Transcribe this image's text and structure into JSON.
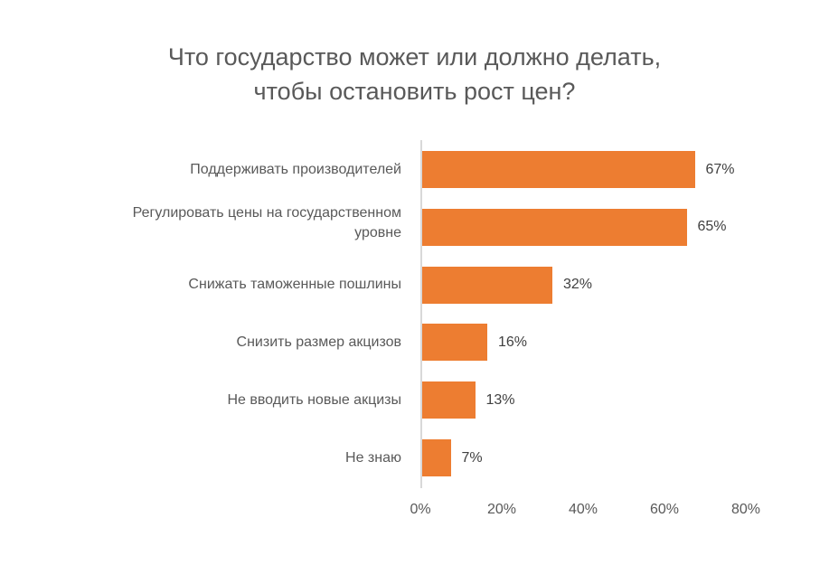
{
  "chart_data": {
    "type": "bar",
    "orientation": "horizontal",
    "title": "Что государство может или должно делать, чтобы остановить рост цен?",
    "title_lines": [
      "Что государство может или должно делать,",
      "чтобы остановить рост цен?"
    ],
    "categories": [
      "Поддерживать производителей",
      "Регулировать цены на государственном уровне",
      "Снижать таможенные пошлины",
      "Снизить размер акцизов",
      "Не вводить новые акцизы",
      "Не знаю"
    ],
    "category_lines": [
      [
        "Поддерживать производителей"
      ],
      [
        "Регулировать цены на государственном",
        "уровне"
      ],
      [
        "Снижать таможенные пошлины"
      ],
      [
        "Снизить размер акцизов"
      ],
      [
        "Не вводить новые акцизы"
      ],
      [
        "Не знаю"
      ]
    ],
    "values": [
      67,
      65,
      32,
      16,
      13,
      7
    ],
    "value_labels": [
      "67%",
      "65%",
      "32%",
      "16%",
      "13%",
      "7%"
    ],
    "xlabel": "",
    "ylabel": "",
    "xlim": [
      0,
      80
    ],
    "x_ticks": [
      "0%",
      "20%",
      "40%",
      "60%",
      "80%"
    ],
    "grid": false,
    "legend": null,
    "bar_color": "#ed7d31"
  }
}
